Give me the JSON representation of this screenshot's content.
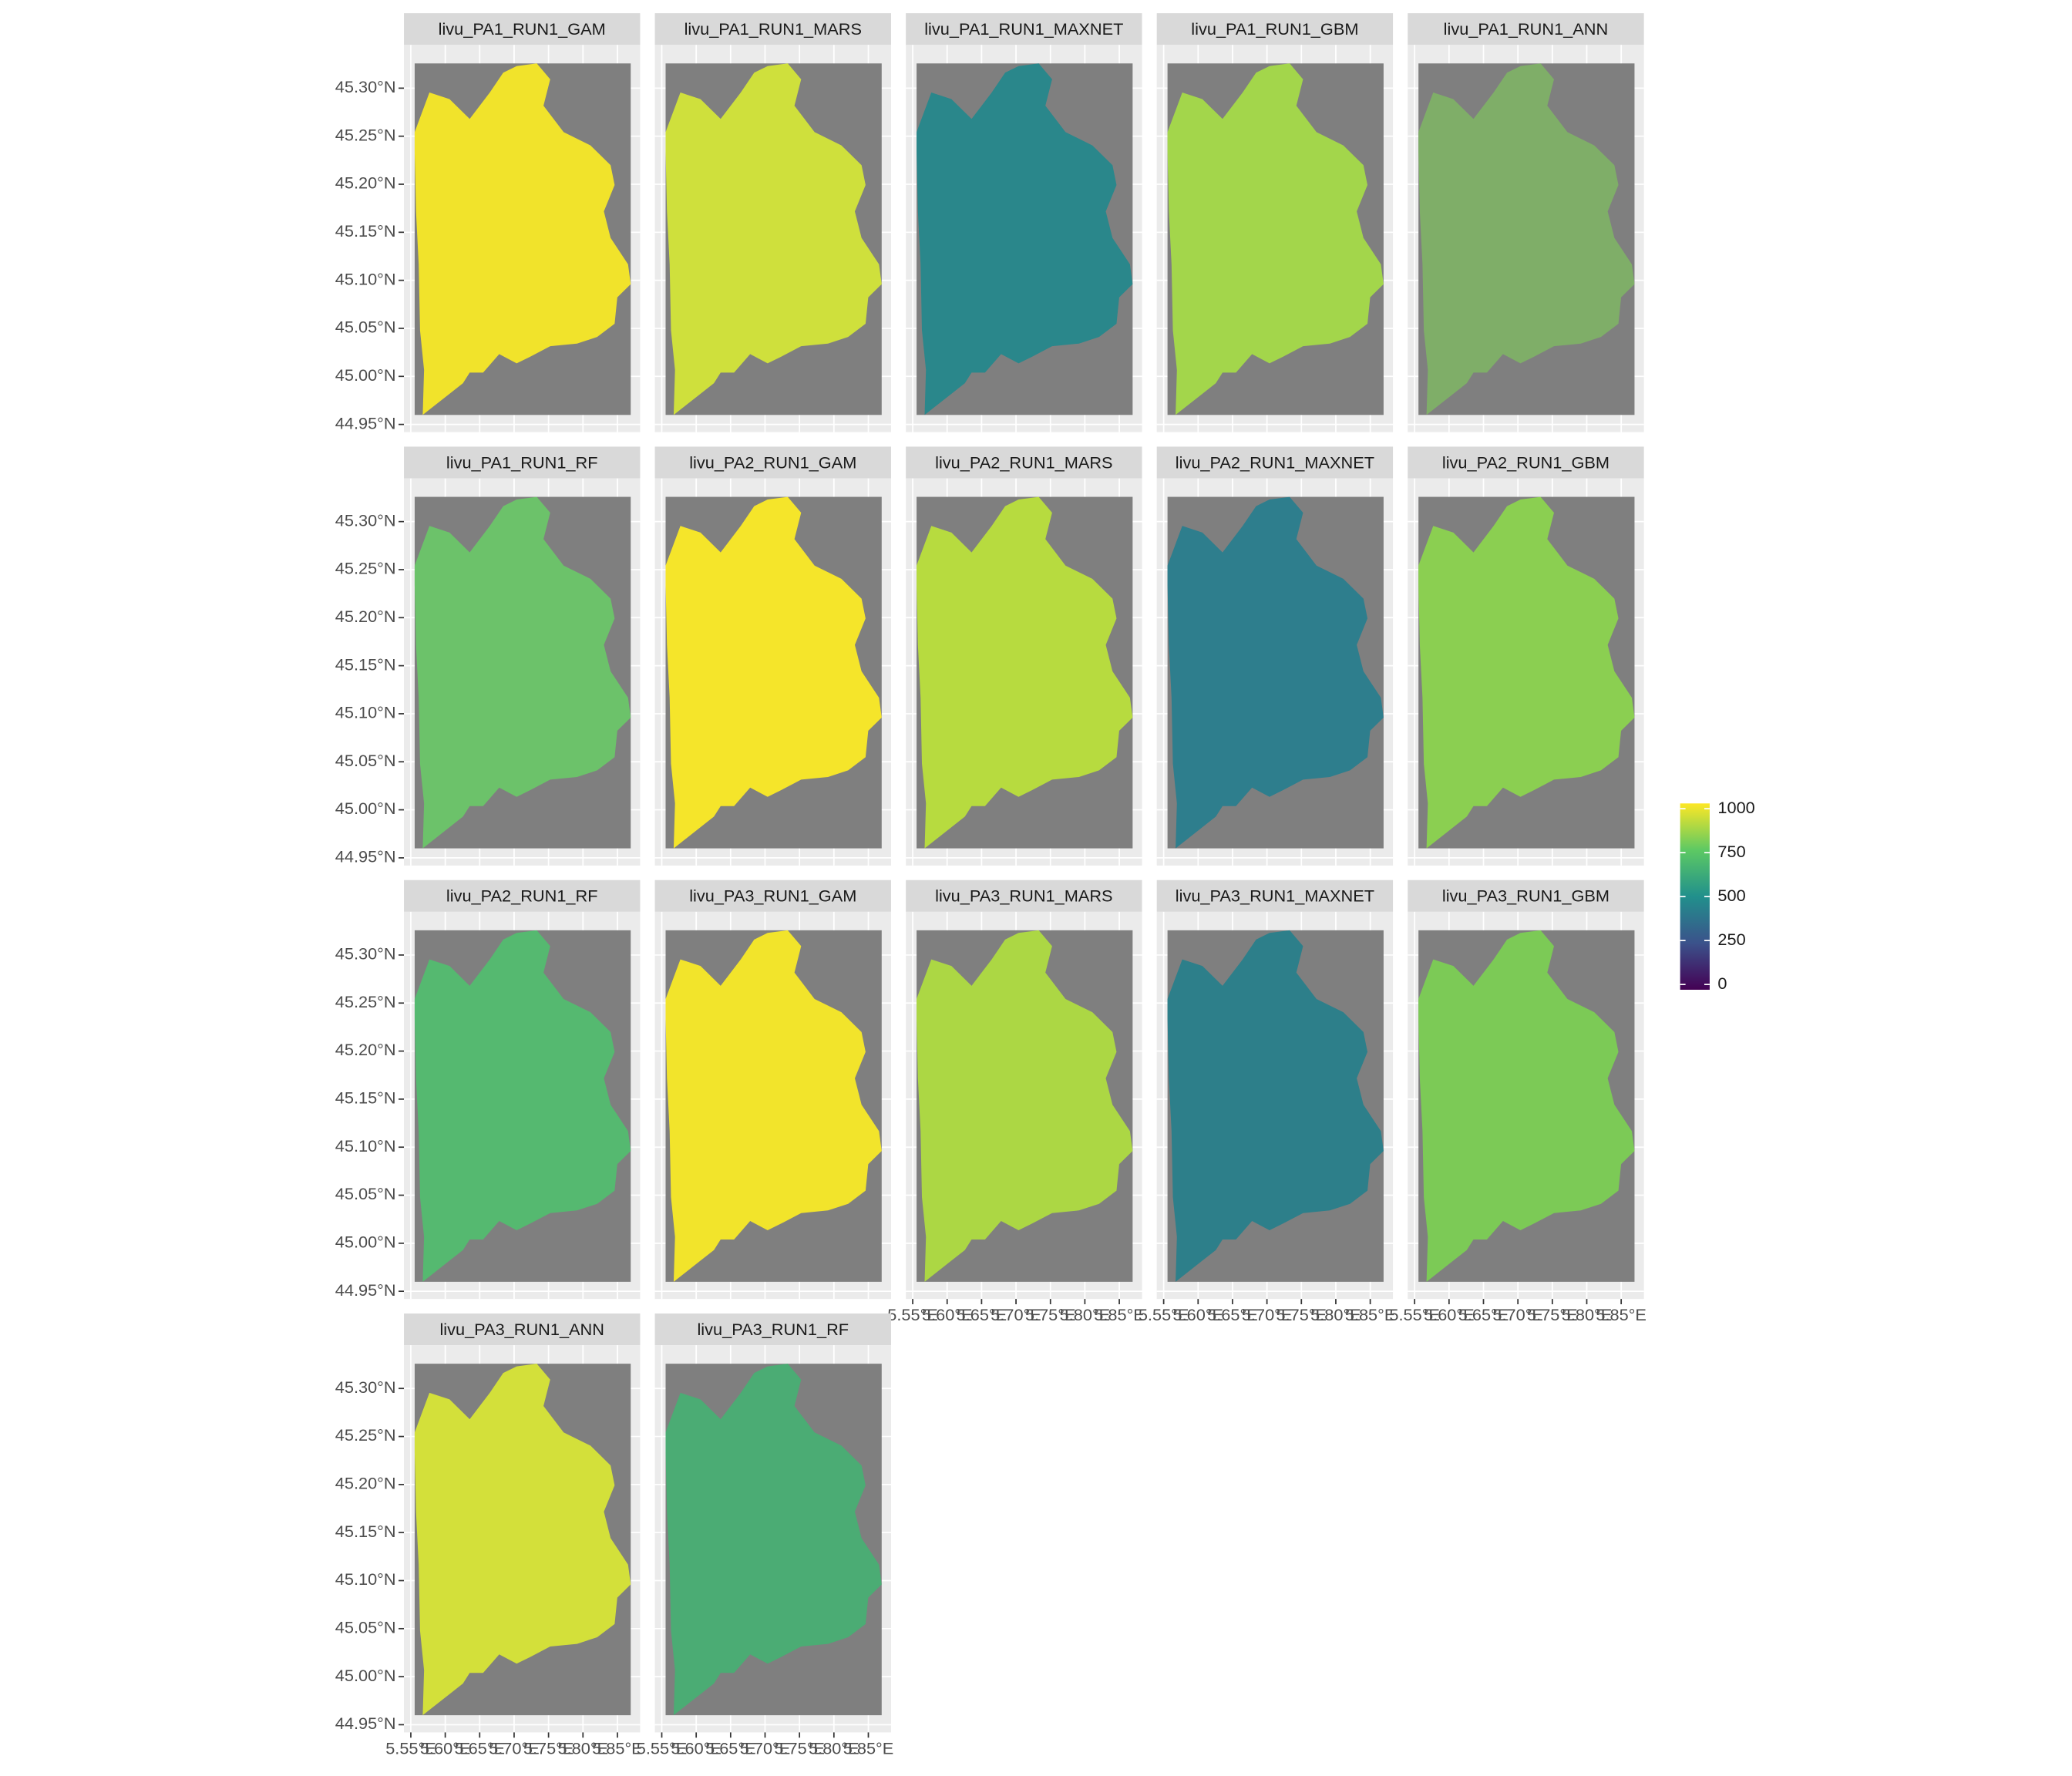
{
  "chart_data": {
    "type": "facet_raster",
    "ncol": 5,
    "panels": [
      {
        "name": "livu_PA1_RUN1_GAM",
        "color": "#f1e32b"
      },
      {
        "name": "livu_PA1_RUN1_MARS",
        "color": "#cfe03c"
      },
      {
        "name": "livu_PA1_RUN1_MAXNET",
        "color": "#2a878b"
      },
      {
        "name": "livu_PA1_RUN1_GBM",
        "color": "#a3d64b"
      },
      {
        "name": "livu_PA1_RUN1_ANN",
        "color": "#7fae68"
      },
      {
        "name": "livu_PA1_RUN1_RF",
        "color": "#6cc26a"
      },
      {
        "name": "livu_PA2_RUN1_GAM",
        "color": "#f5e52a"
      },
      {
        "name": "livu_PA2_RUN1_MARS",
        "color": "#b7db3f"
      },
      {
        "name": "livu_PA2_RUN1_MAXNET",
        "color": "#2e7e8d"
      },
      {
        "name": "livu_PA2_RUN1_GBM",
        "color": "#8bcf51"
      },
      {
        "name": "livu_PA2_RUN1_RF",
        "color": "#55b970"
      },
      {
        "name": "livu_PA3_RUN1_GAM",
        "color": "#f2e42b"
      },
      {
        "name": "livu_PA3_RUN1_MARS",
        "color": "#acd744"
      },
      {
        "name": "livu_PA3_RUN1_MAXNET",
        "color": "#2d7f8a"
      },
      {
        "name": "livu_PA3_RUN1_GBM",
        "color": "#7cca56"
      },
      {
        "name": "livu_PA3_RUN1_ANN",
        "color": "#d3e03a"
      },
      {
        "name": "livu_PA3_RUN1_RF",
        "color": "#4bac74"
      }
    ],
    "xlim": [
      5.54,
      5.883
    ],
    "xticks": [
      {
        "value": 5.55,
        "label": "5.55°E"
      },
      {
        "value": 5.6,
        "label": "5.60°E"
      },
      {
        "value": 5.65,
        "label": "5.65°E"
      },
      {
        "value": 5.7,
        "label": "5.70°E"
      },
      {
        "value": 5.75,
        "label": "5.75°E"
      },
      {
        "value": 5.8,
        "label": "5.80°E"
      },
      {
        "value": 5.85,
        "label": "5.85°E"
      }
    ],
    "ylim": [
      44.942,
      45.345
    ],
    "yticks": [
      {
        "value": 45.3,
        "label": "45.30°N"
      },
      {
        "value": 45.25,
        "label": "45.25°N"
      },
      {
        "value": 45.2,
        "label": "45.20°N"
      },
      {
        "value": 45.15,
        "label": "45.15°N"
      },
      {
        "value": 45.1,
        "label": "45.10°N"
      },
      {
        "value": 45.05,
        "label": "45.05°N"
      },
      {
        "value": 45.0,
        "label": "45.00°N"
      },
      {
        "value": 44.95,
        "label": "44.95°N"
      }
    ],
    "grid": true,
    "legend": {
      "lim": [
        0,
        1000
      ],
      "ticks": [
        0,
        250,
        500,
        750,
        1000
      ],
      "colors": [
        "#440154",
        "#3b528b",
        "#21908c",
        "#5dc963",
        "#fde725"
      ]
    }
  }
}
